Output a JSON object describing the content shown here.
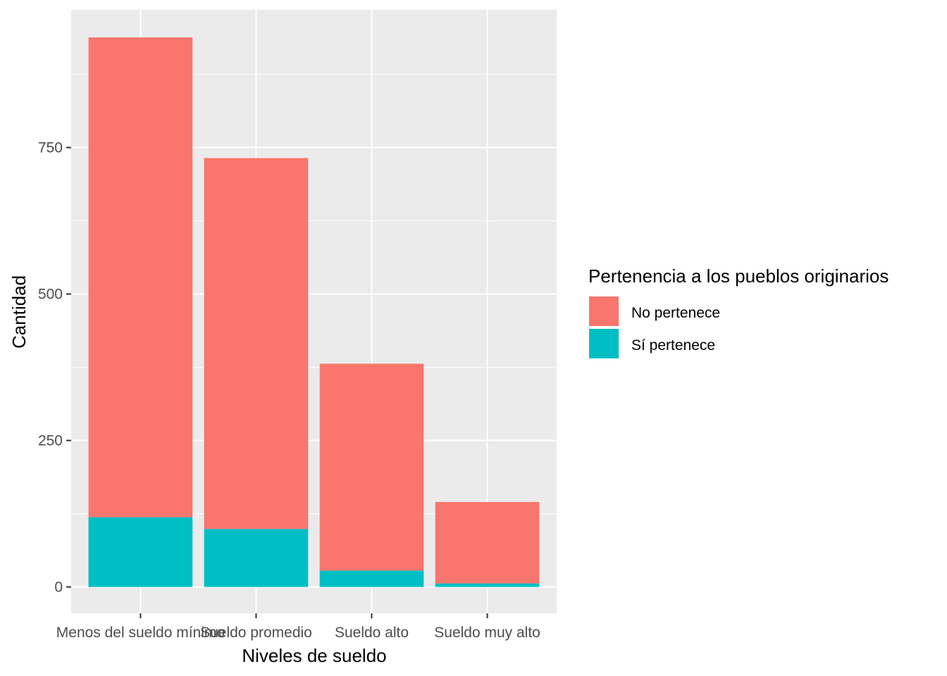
{
  "chart_data": {
    "type": "bar",
    "stacked": true,
    "categories": [
      "Menos del sueldo mínimo",
      "Sueldo promedio",
      "Sueldo alto",
      "Sueldo muy alto"
    ],
    "series": [
      {
        "name": "No pertenece",
        "values": [
          819,
          633,
          353,
          139
        ],
        "color": "#F8766D"
      },
      {
        "name": "Sí pertenece",
        "values": [
          119,
          99,
          28,
          6
        ],
        "color": "#00BFC4"
      }
    ],
    "xlabel": "Niveles de sueldo",
    "ylabel": "Cantidad",
    "ylim": [
      -45,
      985
    ],
    "yticks": [
      0,
      250,
      500,
      750
    ],
    "ytick_labels": [
      "0",
      "250",
      "500",
      "750"
    ],
    "grid": true,
    "legend": {
      "title": "Pertenencia a los pueblos originarios",
      "placement": "right",
      "entries": [
        "No pertenece",
        "Sí pertenece"
      ]
    },
    "panel_color": "#EBEBEB",
    "grid_color": "#FFFFFF"
  }
}
